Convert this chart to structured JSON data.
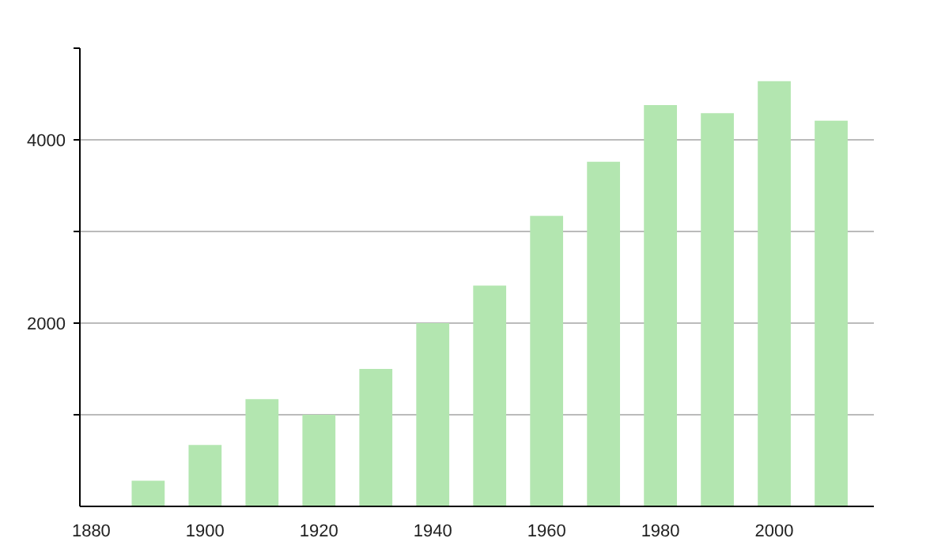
{
  "chart_data": {
    "type": "bar",
    "x": [
      1890,
      1900,
      1910,
      1920,
      1930,
      1940,
      1950,
      1960,
      1970,
      1980,
      1990,
      2000,
      2010
    ],
    "values": [
      280,
      670,
      1170,
      1000,
      1500,
      2000,
      2410,
      3170,
      3760,
      4380,
      4290,
      4640,
      4210
    ],
    "color": "#b3e6b0",
    "xlim": [
      1878,
      2017.5
    ],
    "xticks": [
      1880,
      1900,
      1920,
      1940,
      1960,
      1980,
      2000
    ],
    "ylim": [
      0,
      5000
    ],
    "yticks": [
      {
        "value": 1000,
        "label": null
      },
      2000,
      {
        "value": 3000,
        "label": null
      },
      4000,
      {
        "value": 5000,
        "label": null
      }
    ],
    "grid": "y"
  }
}
